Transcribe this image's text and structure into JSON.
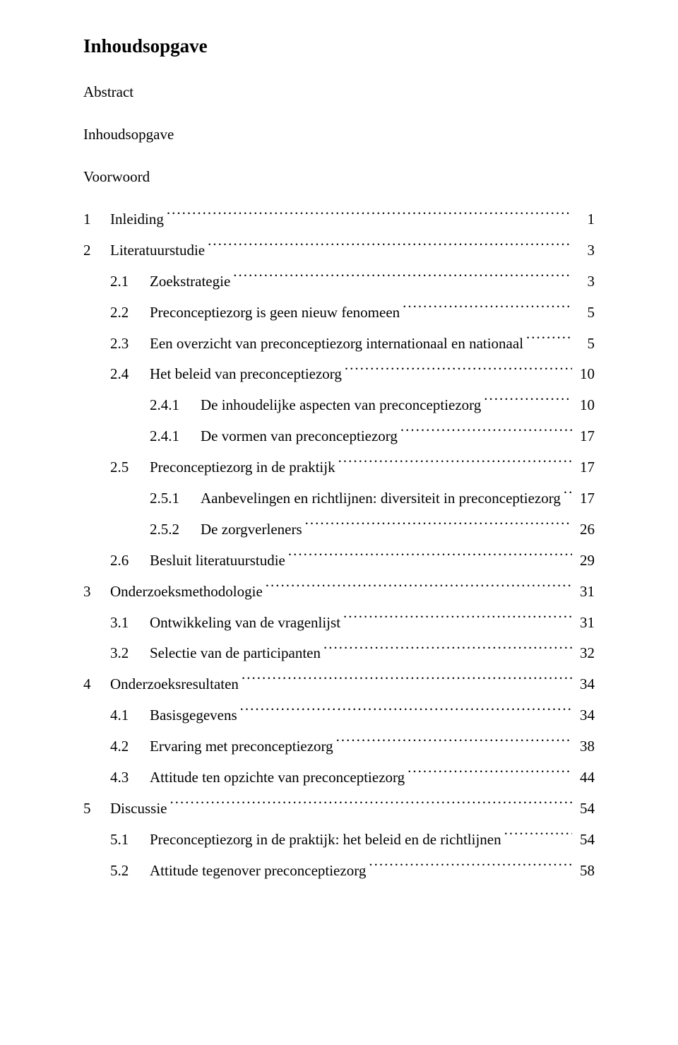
{
  "page": {
    "title": "Inhoudsopgave",
    "front_matter": [
      "Abstract",
      "Inhoudsopgave",
      "Voorwoord"
    ],
    "background_color": "#ffffff",
    "text_color": "#000000",
    "font_family": "Times New Roman",
    "title_fontsize_pt": 20,
    "body_fontsize_pt": 16,
    "line_height": 1.9
  },
  "toc": {
    "leader_char": ".",
    "entries": [
      {
        "level": 1,
        "number": "1",
        "title": "Inleiding",
        "page": "1"
      },
      {
        "level": 1,
        "number": "2",
        "title": "Literatuurstudie",
        "page": "3"
      },
      {
        "level": 2,
        "number": "2.1",
        "title": "Zoekstrategie",
        "page": "3"
      },
      {
        "level": 2,
        "number": "2.2",
        "title": "Preconceptiezorg is geen nieuw fenomeen",
        "page": "5"
      },
      {
        "level": 2,
        "number": "2.3",
        "title": "Een overzicht van preconceptiezorg internationaal en nationaal",
        "page": "5"
      },
      {
        "level": 2,
        "number": "2.4",
        "title": "Het beleid van preconceptiezorg",
        "page": "10"
      },
      {
        "level": 3,
        "number": "2.4.1",
        "title": "De inhoudelijke aspecten van preconceptiezorg",
        "page": "10"
      },
      {
        "level": 3,
        "number": "2.4.1",
        "title": "De vormen van preconceptiezorg",
        "page": "17"
      },
      {
        "level": 2,
        "number": "2.5",
        "title": "Preconceptiezorg in de praktijk",
        "page": "17"
      },
      {
        "level": 3,
        "number": "2.5.1",
        "title": "Aanbevelingen en richtlijnen: diversiteit in preconceptiezorg",
        "page": "17"
      },
      {
        "level": 3,
        "number": "2.5.2",
        "title": "De zorgverleners",
        "page": "26"
      },
      {
        "level": 2,
        "number": "2.6",
        "title": "Besluit literatuurstudie",
        "page": "29"
      },
      {
        "level": 1,
        "number": "3",
        "title": "Onderzoeksmethodologie",
        "page": "31"
      },
      {
        "level": 2,
        "number": "3.1",
        "title": "Ontwikkeling van de vragenlijst",
        "page": "31"
      },
      {
        "level": 2,
        "number": "3.2",
        "title": "Selectie van de participanten",
        "page": "32"
      },
      {
        "level": 1,
        "number": "4",
        "title": "Onderzoeksresultaten",
        "page": "34"
      },
      {
        "level": 2,
        "number": "4.1",
        "title": "Basisgegevens",
        "page": "34"
      },
      {
        "level": 2,
        "number": "4.2",
        "title": "Ervaring met preconceptiezorg",
        "page": "38"
      },
      {
        "level": 2,
        "number": "4.3",
        "title": "Attitude ten opzichte van preconceptiezorg",
        "page": "44"
      },
      {
        "level": 1,
        "number": "5",
        "title": "Discussie",
        "page": "54"
      },
      {
        "level": 2,
        "number": "5.1",
        "title": "Preconceptiezorg in de praktijk: het beleid en de richtlijnen",
        "page": "54"
      },
      {
        "level": 2,
        "number": "5.2",
        "title": "Attitude tegenover preconceptiezorg",
        "page": "58"
      }
    ]
  }
}
